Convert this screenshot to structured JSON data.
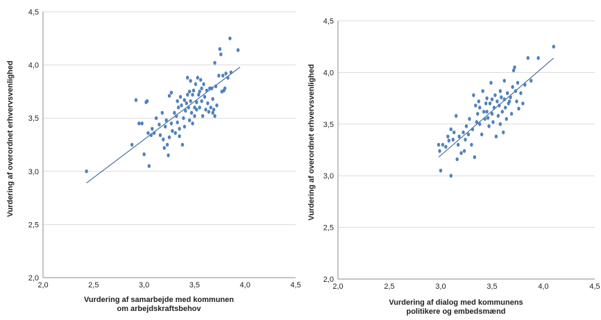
{
  "chart_data": [
    {
      "type": "scatter",
      "title": "",
      "xlabel": [
        "Vurdering af samarbejde med kommunen",
        "om arbejdskraftsbehov"
      ],
      "ylabel": "Vurdering af overordnet erhvervsvenlighed",
      "xlim": [
        2.0,
        4.5
      ],
      "ylim": [
        2.0,
        4.5
      ],
      "x_ticks": [
        "2,0",
        "2,5",
        "3,0",
        "3,5",
        "4,0",
        "4,5"
      ],
      "y_ticks": [
        "2,0",
        "2,5",
        "3,0",
        "3,5",
        "4,0",
        "4,5"
      ],
      "grid": "horizontal",
      "colors": {
        "points": "#4f81bd",
        "trend": "#4a6f96"
      },
      "trendline": {
        "x": [
          2.43,
          3.95
        ],
        "y": [
          2.89,
          3.98
        ]
      },
      "points": [
        [
          2.43,
          3.0
        ],
        [
          2.88,
          3.25
        ],
        [
          2.92,
          3.67
        ],
        [
          2.95,
          3.45
        ],
        [
          2.98,
          3.45
        ],
        [
          3.0,
          3.16
        ],
        [
          3.02,
          3.65
        ],
        [
          3.03,
          3.66
        ],
        [
          3.04,
          3.36
        ],
        [
          3.05,
          3.05
        ],
        [
          3.07,
          3.34
        ],
        [
          3.08,
          3.4
        ],
        [
          3.1,
          3.36
        ],
        [
          3.12,
          3.5
        ],
        [
          3.15,
          3.44
        ],
        [
          3.16,
          3.34
        ],
        [
          3.18,
          3.55
        ],
        [
          3.19,
          3.3
        ],
        [
          3.2,
          3.22
        ],
        [
          3.21,
          3.42
        ],
        [
          3.22,
          3.48
        ],
        [
          3.23,
          3.25
        ],
        [
          3.24,
          3.15
        ],
        [
          3.25,
          3.71
        ],
        [
          3.25,
          3.32
        ],
        [
          3.27,
          3.74
        ],
        [
          3.27,
          3.45
        ],
        [
          3.28,
          3.38
        ],
        [
          3.3,
          3.55
        ],
        [
          3.31,
          3.36
        ],
        [
          3.32,
          3.52
        ],
        [
          3.33,
          3.66
        ],
        [
          3.33,
          3.46
        ],
        [
          3.34,
          3.6
        ],
        [
          3.35,
          3.33
        ],
        [
          3.35,
          3.4
        ],
        [
          3.36,
          3.7
        ],
        [
          3.37,
          3.62
        ],
        [
          3.38,
          3.25
        ],
        [
          3.39,
          3.5
        ],
        [
          3.4,
          3.42
        ],
        [
          3.4,
          3.67
        ],
        [
          3.41,
          3.57
        ],
        [
          3.42,
          3.64
        ],
        [
          3.43,
          3.88
        ],
        [
          3.43,
          3.72
        ],
        [
          3.44,
          3.6
        ],
        [
          3.45,
          3.75
        ],
        [
          3.45,
          3.48
        ],
        [
          3.46,
          3.85
        ],
        [
          3.46,
          3.66
        ],
        [
          3.47,
          3.55
        ],
        [
          3.48,
          3.72
        ],
        [
          3.48,
          3.45
        ],
        [
          3.49,
          3.76
        ],
        [
          3.5,
          3.6
        ],
        [
          3.5,
          3.52
        ],
        [
          3.51,
          3.82
        ],
        [
          3.52,
          3.65
        ],
        [
          3.52,
          3.58
        ],
        [
          3.53,
          3.88
        ],
        [
          3.54,
          3.72
        ],
        [
          3.55,
          3.6
        ],
        [
          3.55,
          3.75
        ],
        [
          3.56,
          3.86
        ],
        [
          3.57,
          3.78
        ],
        [
          3.57,
          3.66
        ],
        [
          3.58,
          3.52
        ],
        [
          3.59,
          3.82
        ],
        [
          3.6,
          3.7
        ],
        [
          3.61,
          3.58
        ],
        [
          3.62,
          3.76
        ],
        [
          3.63,
          3.64
        ],
        [
          3.64,
          3.56
        ],
        [
          3.65,
          3.78
        ],
        [
          3.66,
          3.6
        ],
        [
          3.67,
          3.78
        ],
        [
          3.68,
          3.68
        ],
        [
          3.68,
          3.55
        ],
        [
          3.69,
          3.58
        ],
        [
          3.7,
          3.52
        ],
        [
          3.7,
          4.02
        ],
        [
          3.71,
          3.8
        ],
        [
          3.72,
          3.62
        ],
        [
          3.74,
          3.9
        ],
        [
          3.75,
          4.15
        ],
        [
          3.76,
          4.1
        ],
        [
          3.77,
          3.75
        ],
        [
          3.78,
          3.9
        ],
        [
          3.79,
          3.76
        ],
        [
          3.8,
          3.78
        ],
        [
          3.81,
          3.92
        ],
        [
          3.83,
          3.88
        ],
        [
          3.85,
          4.25
        ],
        [
          3.86,
          3.93
        ],
        [
          3.93,
          4.14
        ]
      ]
    },
    {
      "type": "scatter",
      "title": "",
      "xlabel": [
        "Vurdering af dialog med kommunens",
        "politikere og embedsmænd"
      ],
      "ylabel": "Vurdering af overordnet erhvervsvenlighed",
      "xlim": [
        2.0,
        4.5
      ],
      "ylim": [
        2.0,
        4.5
      ],
      "x_ticks": [
        "2,0",
        "2,5",
        "3,0",
        "3,5",
        "4,0",
        "4,5"
      ],
      "y_ticks": [
        "2,0",
        "2,5",
        "3,0",
        "3,5",
        "4,0",
        "4,5"
      ],
      "grid": "horizontal",
      "colors": {
        "points": "#4f81bd",
        "trend": "#4a6f96"
      },
      "trendline": {
        "x": [
          2.98,
          4.1
        ],
        "y": [
          3.18,
          4.14
        ]
      },
      "points": [
        [
          2.98,
          3.3
        ],
        [
          2.99,
          3.24
        ],
        [
          3.0,
          3.05
        ],
        [
          3.02,
          3.3
        ],
        [
          3.05,
          3.28
        ],
        [
          3.07,
          3.38
        ],
        [
          3.08,
          3.34
        ],
        [
          3.1,
          3.0
        ],
        [
          3.1,
          3.45
        ],
        [
          3.12,
          3.35
        ],
        [
          3.13,
          3.42
        ],
        [
          3.15,
          3.58
        ],
        [
          3.16,
          3.16
        ],
        [
          3.17,
          3.3
        ],
        [
          3.18,
          3.38
        ],
        [
          3.2,
          3.22
        ],
        [
          3.22,
          3.42
        ],
        [
          3.23,
          3.24
        ],
        [
          3.24,
          3.35
        ],
        [
          3.25,
          3.48
        ],
        [
          3.27,
          3.4
        ],
        [
          3.28,
          3.55
        ],
        [
          3.3,
          3.3
        ],
        [
          3.31,
          3.45
        ],
        [
          3.32,
          3.78
        ],
        [
          3.33,
          3.18
        ],
        [
          3.34,
          3.68
        ],
        [
          3.35,
          3.52
        ],
        [
          3.36,
          3.6
        ],
        [
          3.37,
          3.72
        ],
        [
          3.38,
          3.5
        ],
        [
          3.38,
          3.66
        ],
        [
          3.4,
          3.4
        ],
        [
          3.41,
          3.82
        ],
        [
          3.42,
          3.62
        ],
        [
          3.43,
          3.55
        ],
        [
          3.44,
          3.7
        ],
        [
          3.45,
          3.62
        ],
        [
          3.45,
          3.75
        ],
        [
          3.46,
          3.56
        ],
        [
          3.47,
          3.48
        ],
        [
          3.48,
          3.7
        ],
        [
          3.49,
          3.9
        ],
        [
          3.5,
          3.6
        ],
        [
          3.5,
          3.74
        ],
        [
          3.51,
          3.52
        ],
        [
          3.52,
          3.66
        ],
        [
          3.53,
          3.78
        ],
        [
          3.54,
          3.38
        ],
        [
          3.55,
          3.72
        ],
        [
          3.56,
          3.58
        ],
        [
          3.57,
          3.68
        ],
        [
          3.58,
          3.82
        ],
        [
          3.58,
          3.5
        ],
        [
          3.59,
          3.76
        ],
        [
          3.6,
          3.62
        ],
        [
          3.61,
          3.42
        ],
        [
          3.62,
          3.74
        ],
        [
          3.62,
          3.92
        ],
        [
          3.63,
          3.66
        ],
        [
          3.64,
          3.55
        ],
        [
          3.65,
          3.8
        ],
        [
          3.66,
          3.7
        ],
        [
          3.67,
          3.72
        ],
        [
          3.68,
          3.76
        ],
        [
          3.69,
          3.6
        ],
        [
          3.7,
          3.86
        ],
        [
          3.71,
          4.02
        ],
        [
          3.72,
          4.05
        ],
        [
          3.73,
          3.82
        ],
        [
          3.74,
          3.72
        ],
        [
          3.75,
          3.9
        ],
        [
          3.76,
          3.65
        ],
        [
          3.78,
          3.8
        ],
        [
          3.8,
          3.7
        ],
        [
          3.82,
          3.88
        ],
        [
          3.85,
          4.14
        ],
        [
          3.88,
          3.92
        ],
        [
          3.95,
          4.14
        ],
        [
          4.1,
          4.25
        ]
      ]
    }
  ]
}
